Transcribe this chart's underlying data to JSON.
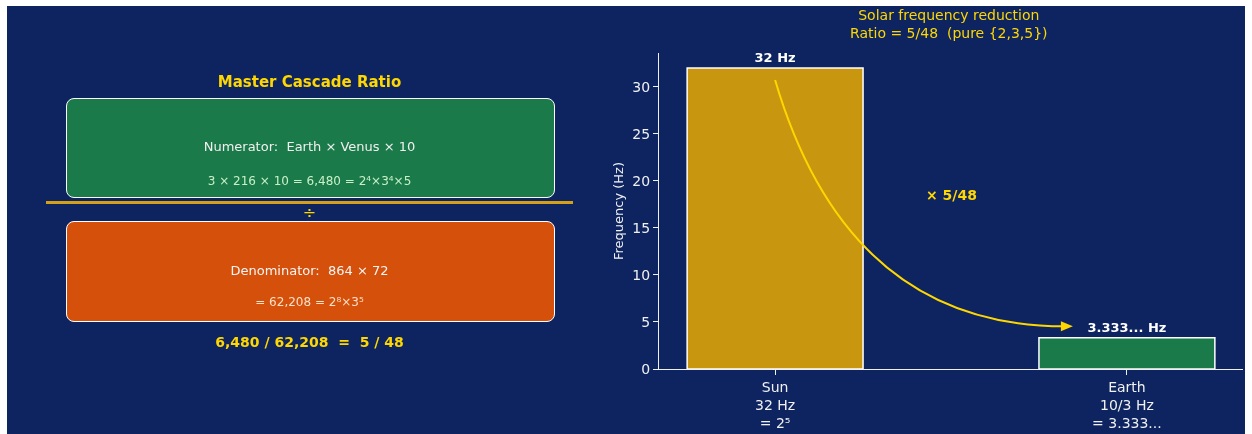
{
  "chart_data": [
    {
      "type": "other",
      "title": "Master Cascade Ratio",
      "annotations": [
        "Numerator:  Earth × Venus × 10",
        "3 × 216 × 10 = 6,480 = 2⁴×3⁴×5",
        "÷",
        "Denominator:  864 × 72",
        "= 62,208 = 2⁸×3⁵",
        "6,480 / 62,208  =  5 / 48"
      ]
    },
    {
      "type": "bar",
      "title": "Solar frequency reduction\nRatio = 5/48  (pure {2,3,5})",
      "ylabel": "Frequency (Hz)",
      "categories": [
        "Sun\n32 Hz\n= 2⁵",
        "Earth\n10/3 Hz\n= 3.333..."
      ],
      "values": [
        32,
        3.333
      ],
      "colors": [
        "#c8960f",
        "#1b7a4a"
      ],
      "value_labels": [
        "32 Hz",
        "3.333... Hz"
      ],
      "ylim": [
        0,
        33.6
      ],
      "yticks": [
        0,
        5,
        10,
        15,
        20,
        25,
        30
      ],
      "grid": false,
      "annotations": [
        "× 5/48"
      ]
    }
  ]
}
